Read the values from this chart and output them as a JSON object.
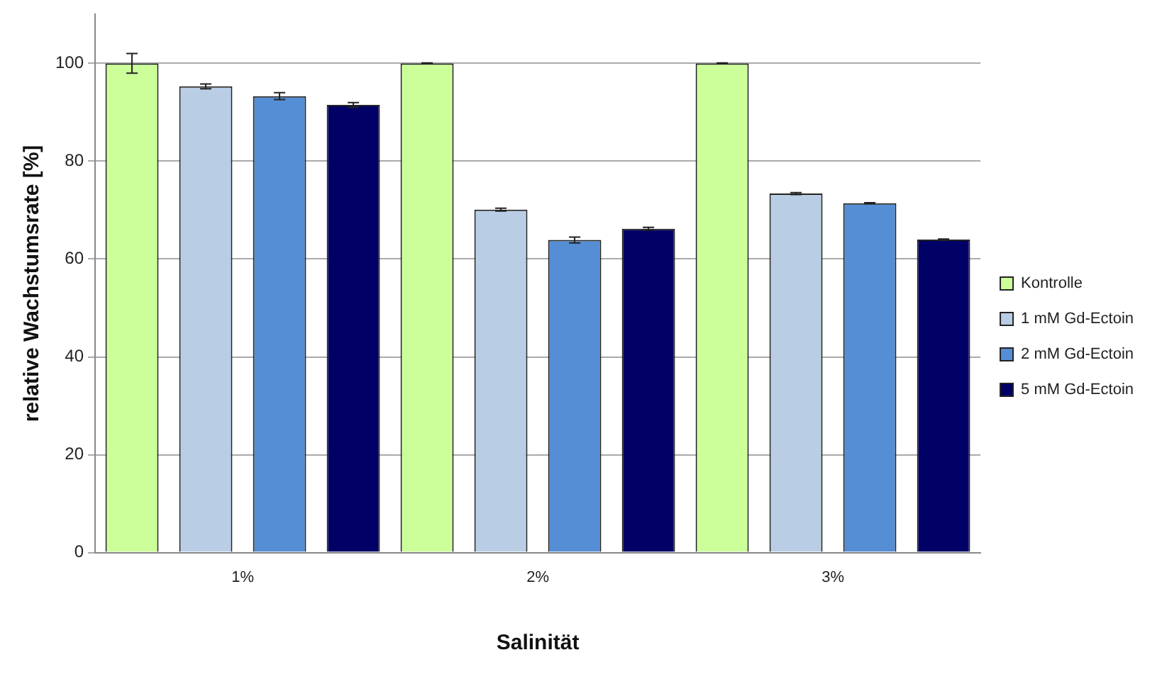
{
  "chart_data": {
    "type": "bar",
    "xlabel": "Salinität",
    "ylabel": "relative Wachstumsrate [%]",
    "categories": [
      "1%",
      "2%",
      "3%"
    ],
    "series": [
      {
        "name": "Kontrolle",
        "color": "#ccff99",
        "values": [
          100,
          100,
          100
        ],
        "errors": [
          2,
          0.1,
          0.1
        ]
      },
      {
        "name": "1 mM Gd-Ectoin",
        "color": "#b9cde5",
        "values": [
          95.3,
          70.1,
          73.4
        ],
        "errors": [
          0.5,
          0.3,
          0.2
        ]
      },
      {
        "name": "2 mM Gd-Ectoin",
        "color": "#558ed5",
        "values": [
          93.3,
          63.9,
          71.4
        ],
        "errors": [
          0.7,
          0.6,
          0.1
        ]
      },
      {
        "name": "5 mM Gd-Ectoin",
        "color": "#000066",
        "values": [
          91.5,
          66.2,
          64.0
        ],
        "errors": [
          0.5,
          0.3,
          0.1
        ]
      }
    ],
    "ylim": [
      0,
      110
    ],
    "yticks": [
      0,
      20,
      40,
      60,
      80,
      100
    ],
    "grid": "y",
    "legend": "right"
  }
}
